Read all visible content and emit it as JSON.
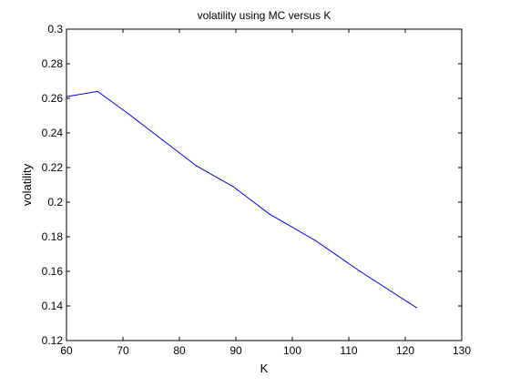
{
  "chart_data": {
    "type": "line",
    "title": "volatility using MC versus K",
    "xlabel": "K",
    "ylabel": "volatility",
    "xlim": [
      60,
      130
    ],
    "ylim": [
      0.12,
      0.3
    ],
    "xticks": [
      "60",
      "70",
      "80",
      "90",
      "100",
      "110",
      "120",
      "130"
    ],
    "yticks": [
      "0.12",
      "0.14",
      "0.16",
      "0.18",
      "0.2",
      "0.22",
      "0.24",
      "0.26",
      "0.28",
      "0.3"
    ],
    "grid": false,
    "series": [
      {
        "color": "#0000ff",
        "x": [
          60,
          65.5,
          71,
          77,
          83,
          89.5,
          96,
          104,
          112,
          122
        ],
        "y": [
          0.261,
          0.264,
          0.251,
          0.236,
          0.221,
          0.209,
          0.193,
          0.178,
          0.16,
          0.139
        ]
      }
    ]
  }
}
